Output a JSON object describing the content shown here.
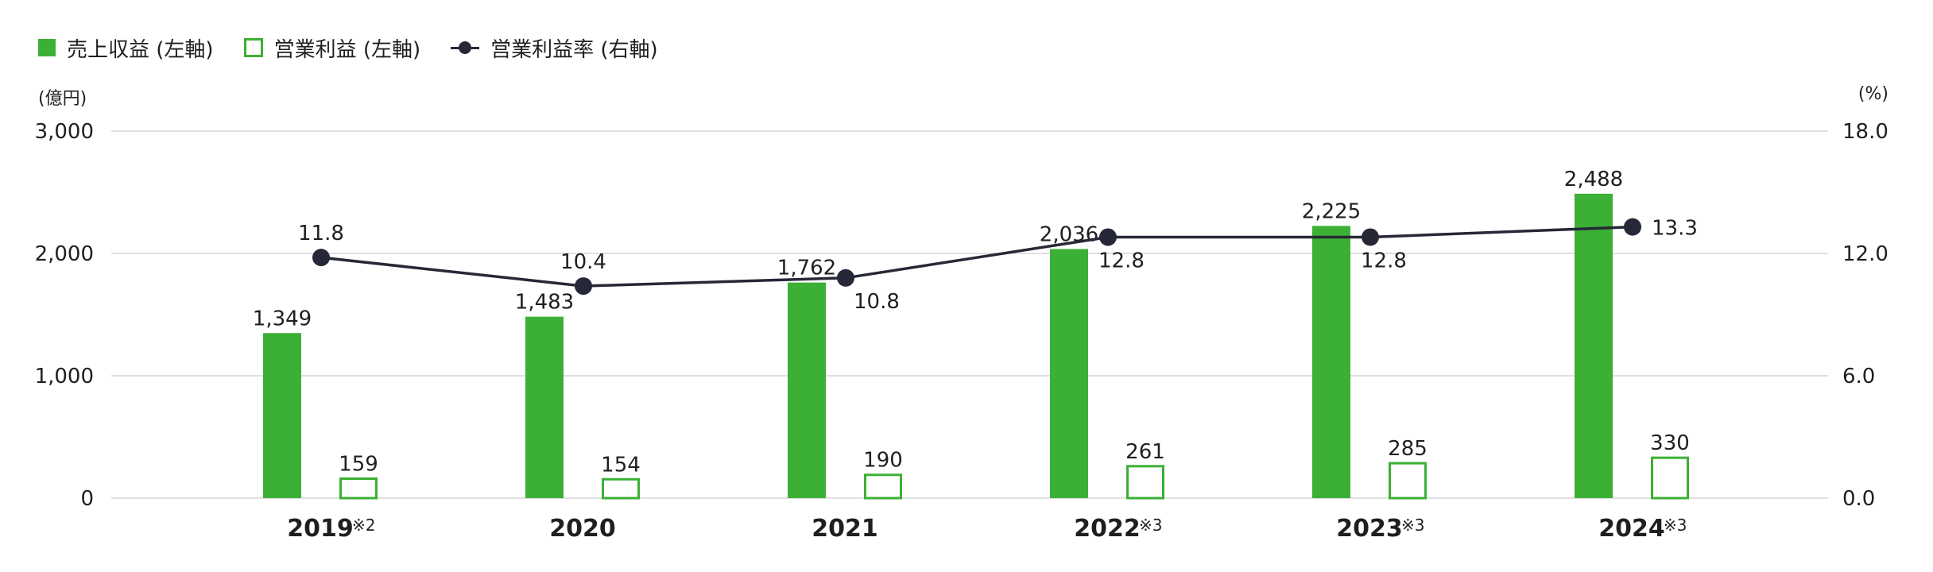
{
  "legend": {
    "revenue": "売上収益 (左軸)",
    "op_profit": "営業利益 (左軸)",
    "op_margin": "営業利益率 (右軸)"
  },
  "units": {
    "left": "(億円)",
    "right": "(%)"
  },
  "colors": {
    "bar": "#3cb034",
    "line": "#262838",
    "grid": "#d6d6d6"
  },
  "chart_data": {
    "type": "bar",
    "categories": [
      "2019",
      "2020",
      "2021",
      "2022",
      "2023",
      "2024"
    ],
    "category_notes": [
      "※2",
      "",
      "",
      "※3",
      "※3",
      "※3"
    ],
    "series": [
      {
        "name": "売上収益 (左軸)",
        "type": "bar",
        "axis": "left",
        "style": "filled",
        "values": [
          1349,
          1483,
          1762,
          2036,
          2225,
          2488
        ],
        "labels": [
          "1,349",
          "1,483",
          "1,762",
          "2,036",
          "2,225",
          "2,488"
        ]
      },
      {
        "name": "営業利益 (左軸)",
        "type": "bar",
        "axis": "left",
        "style": "outline",
        "values": [
          159,
          154,
          190,
          261,
          285,
          330
        ],
        "labels": [
          "159",
          "154",
          "190",
          "261",
          "285",
          "330"
        ]
      },
      {
        "name": "営業利益率 (右軸)",
        "type": "line",
        "axis": "right",
        "values": [
          11.8,
          10.4,
          10.8,
          12.8,
          12.8,
          13.3
        ],
        "labels": [
          "11.8",
          "10.4",
          "10.8",
          "12.8",
          "12.8",
          "13.3"
        ]
      }
    ],
    "y_left": {
      "range": [
        0,
        3000
      ],
      "ticks": [
        0,
        1000,
        2000,
        3000
      ],
      "tick_labels": [
        "0",
        "1,000",
        "2,000",
        "3,000"
      ]
    },
    "y_right": {
      "range": [
        0,
        18
      ],
      "ticks": [
        0,
        6,
        12,
        18
      ],
      "tick_labels": [
        "0.0",
        "6.0",
        "12.0",
        "18.0"
      ]
    },
    "grid": true,
    "legend_position": "top-left"
  }
}
